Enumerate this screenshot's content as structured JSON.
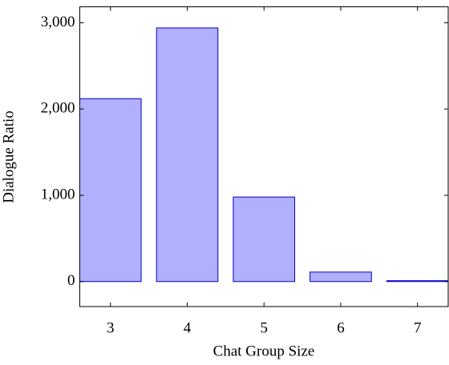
{
  "chart_data": {
    "type": "bar",
    "x_label": "Chat Group Size",
    "y_label": "Dialogue Ratio",
    "x": [
      3,
      4,
      5,
      6,
      7
    ],
    "values": [
      2120,
      2940,
      980,
      110,
      10
    ],
    "color": "#b0b0ff",
    "edge_color": "#0000cc",
    "xlim": [
      2.6,
      7.4
    ],
    "xticks": [
      3,
      4,
      5,
      6,
      7
    ],
    "ylim": [
      -290,
      3185
    ],
    "yticks": [
      0,
      {
        "value": 1000,
        "label": "1,000"
      },
      {
        "value": 2000,
        "label": "2,000"
      },
      {
        "value": 3000,
        "label": "3,000"
      }
    ],
    "bar_width": 0.8
  }
}
